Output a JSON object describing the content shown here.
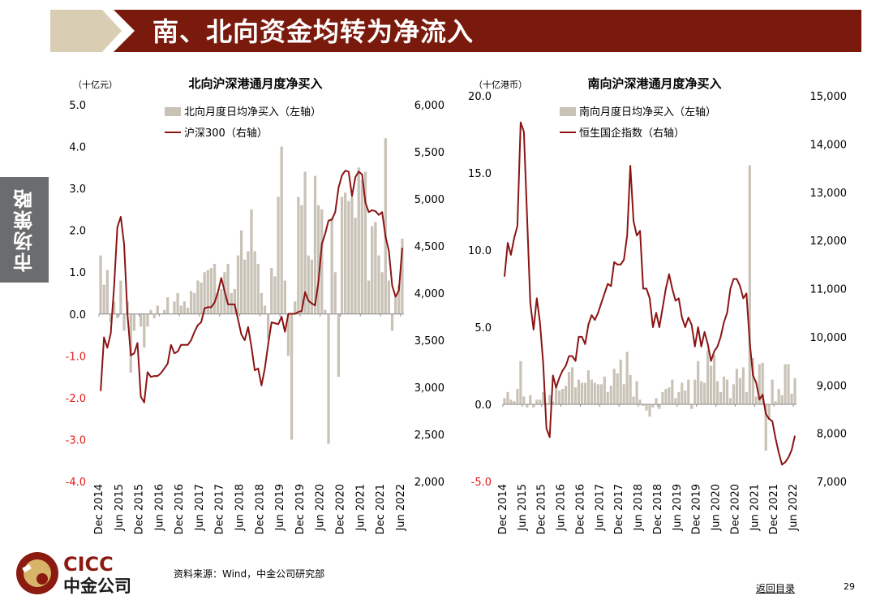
{
  "header": {
    "title": "南、北向资金均转为净流入"
  },
  "side_tab": {
    "label": "市场策略"
  },
  "footer": {
    "logo_text_en": "CICC",
    "logo_text_cn": "中金公司",
    "source": "资料来源：Wind，中金公司研究部",
    "toc_link": "返回目录",
    "page_number": "29"
  },
  "colors": {
    "banner": "#7a1a0c",
    "banner_arrow": "#d9cdb4",
    "bar": "#c9c2b7",
    "line": "#8b1414",
    "negative_axis": "#e31b1b",
    "side_tab": "#6b6c6e"
  },
  "chart_data": [
    {
      "type": "bar+line",
      "title": "北向沪深港通月度净买入",
      "unit_label": "（十亿元）",
      "left_axis": {
        "ylim": [
          -4,
          5
        ],
        "ticks": [
          "5.0",
          "4.0",
          "3.0",
          "2.0",
          "1.0",
          "0.0",
          "-1.0",
          "-2.0",
          "-3.0",
          "-4.0"
        ]
      },
      "right_axis": {
        "ylim": [
          2000,
          6000
        ],
        "ticks": [
          "6,000",
          "5,500",
          "5,000",
          "4,500",
          "4,000",
          "3,500",
          "3,000",
          "2,500",
          "2,000"
        ]
      },
      "x_ticks": [
        "Dec 2014",
        "Jun 2015",
        "Dec 2015",
        "Jun 2016",
        "Dec 2016",
        "Jun 2017",
        "Dec 2017",
        "Jun 2018",
        "Dec 2018",
        "Jun 2019",
        "Dec 2019",
        "Jun 2020",
        "Dec 2020",
        "Jun 2021",
        "Dec 2021",
        "Jun 2022"
      ],
      "legend": [
        "北向月度日均净买入（左轴）",
        "沪深300（右轴）"
      ],
      "months": 91,
      "series": [
        {
          "name": "北向月度日均净买入（左轴）",
          "axis": "left",
          "kind": "bar",
          "values": [
            1.4,
            0.7,
            1.05,
            -0.2,
            0.3,
            -0.1,
            0.8,
            -0.4,
            0.3,
            -1.4,
            -0.4,
            0,
            -0.3,
            -0.8,
            -0.3,
            0.1,
            -0.1,
            0.2,
            0,
            0.1,
            0.4,
            0,
            0.3,
            0.5,
            0.2,
            0.3,
            0.15,
            0.55,
            0.5,
            0.8,
            0.75,
            1.0,
            1.05,
            1.1,
            1.2,
            0.5,
            0.6,
            1.0,
            1.2,
            0.5,
            0.6,
            1.4,
            2.0,
            1.3,
            1.5,
            2.5,
            1.5,
            1.2,
            0.5,
            0.2,
            -0.6,
            1.1,
            0.9,
            2.8,
            4.0,
            0.8,
            -1.0,
            -3.0,
            0.3,
            2.8,
            2.6,
            3.4,
            1.4,
            1.3,
            3.3,
            2.6,
            2.5,
            0.1,
            -3.1,
            2.3,
            1.0,
            -1.5,
            2.8,
            2.9,
            2.7,
            2.8,
            2.3,
            3.5,
            3.2,
            3.4,
            0.8,
            2.1,
            2.2,
            1.4,
            1.0,
            4.2,
            0.8,
            -0.4,
            0.4,
            0.7,
            1.8
          ]
        },
        {
          "name": "沪深300（右轴）",
          "axis": "right",
          "kind": "line",
          "values": [
            2960,
            3530,
            3420,
            3570,
            4060,
            4700,
            4810,
            4520,
            3780,
            3340,
            3360,
            3470,
            2900,
            2840,
            3160,
            3110,
            3120,
            3120,
            3150,
            3200,
            3250,
            3450,
            3360,
            3380,
            3450,
            3450,
            3450,
            3500,
            3590,
            3660,
            3690,
            3840,
            3850,
            3850,
            3900,
            4010,
            4160,
            4020,
            3880,
            3880,
            3880,
            3720,
            3560,
            3500,
            3640,
            3430,
            3180,
            3200,
            3020,
            3200,
            3460,
            3690,
            3680,
            3670,
            3750,
            3590,
            3780,
            3780,
            3780,
            3800,
            3810,
            4010,
            3920,
            3890,
            3870,
            4120,
            4520,
            4630,
            4770,
            4780,
            4860,
            5120,
            5250,
            5300,
            5290,
            5030,
            5230,
            5290,
            5260,
            4960,
            4860,
            4880,
            4870,
            4830,
            4860,
            4600,
            4450,
            4080,
            3960,
            4030,
            4480
          ]
        }
      ]
    },
    {
      "type": "bar+line",
      "title": "南向沪深港通月度净买入",
      "unit_label": "（十亿港币）",
      "left_axis": {
        "ylim": [
          -5,
          20
        ],
        "ticks": [
          "20.0",
          "15.0",
          "10.0",
          "5.0",
          "0.0",
          "-5.0"
        ]
      },
      "right_axis": {
        "ylim": [
          7000,
          15000
        ],
        "ticks": [
          "15,000",
          "14,000",
          "13,000",
          "12,000",
          "11,000",
          "10,000",
          "9,000",
          "8,000",
          "7,000"
        ]
      },
      "x_ticks": [
        "Dec 2014",
        "Jun 2015",
        "Dec 2015",
        "Jun 2016",
        "Dec 2016",
        "Jun 2017",
        "Dec 2017",
        "Jun 2018",
        "Dec 2018",
        "Jun 2019",
        "Dec 2019",
        "Jun 2020",
        "Dec 2020",
        "Jun 2021",
        "Dec 2021",
        "Jun 2022"
      ],
      "legend": [
        "南向月度日均净买入（左轴）",
        "恒生国企指数（右轴）"
      ],
      "months": 91,
      "series": [
        {
          "name": "南向月度日均净买入（左轴）",
          "axis": "left",
          "kind": "bar",
          "values": [
            0.4,
            0.8,
            0.3,
            0.2,
            1.0,
            2.8,
            0.5,
            -0.2,
            0.6,
            -0.2,
            0.3,
            0.3,
            0.8,
            0.1,
            0.6,
            0.2,
            1.2,
            0.9,
            1.0,
            1.2,
            2.1,
            2.4,
            1.1,
            1.6,
            1.4,
            1.4,
            2.2,
            1.6,
            1.4,
            1.3,
            1.3,
            1.8,
            0.8,
            1.2,
            2.3,
            2.0,
            2.9,
            1.3,
            3.4,
            1.9,
            0.5,
            1.5,
            0.3,
            -0.1,
            -0.4,
            -0.8,
            -0.2,
            0.4,
            -0.3,
            0.8,
            1.0,
            1.1,
            1.6,
            0.4,
            0.8,
            1.4,
            0.9,
            1.6,
            -0.3,
            1.6,
            2.8,
            1.5,
            1.4,
            3.5,
            2.5,
            3.2,
            1.5,
            0.8,
            1.8,
            1.6,
            0.4,
            1.3,
            2.3,
            1.7,
            2.4,
            0.8,
            15.5,
            3.0,
            0.5,
            2.6,
            2.7,
            -3.0,
            -1.0,
            1.6,
            0.2,
            1.0,
            0.6,
            2.6,
            2.6,
            0.7,
            1.7
          ]
        },
        {
          "name": "恒生国企指数（右轴）",
          "axis": "right",
          "kind": "line",
          "values": [
            11250,
            11950,
            11700,
            12050,
            12300,
            14450,
            14250,
            12500,
            10700,
            10150,
            10800,
            10300,
            9450,
            8100,
            7920,
            9200,
            8950,
            9150,
            9300,
            9400,
            9600,
            9600,
            9500,
            10000,
            10000,
            9850,
            10250,
            10450,
            10350,
            10500,
            10700,
            10900,
            11100,
            11050,
            11550,
            11500,
            11500,
            11600,
            12100,
            13550,
            12400,
            12100,
            12200,
            11000,
            11000,
            10800,
            10200,
            10500,
            10200,
            10600,
            11000,
            11300,
            11000,
            10750,
            10800,
            10400,
            10200,
            10400,
            10250,
            9800,
            10200,
            9800,
            10100,
            9850,
            9500,
            9700,
            9800,
            10000,
            10300,
            10500,
            11000,
            11200,
            11200,
            11050,
            10800,
            10900,
            9900,
            9200,
            9050,
            8700,
            8800,
            8400,
            8300,
            8250,
            7900,
            7600,
            7350,
            7400,
            7500,
            7650,
            7950
          ]
        }
      ]
    }
  ]
}
